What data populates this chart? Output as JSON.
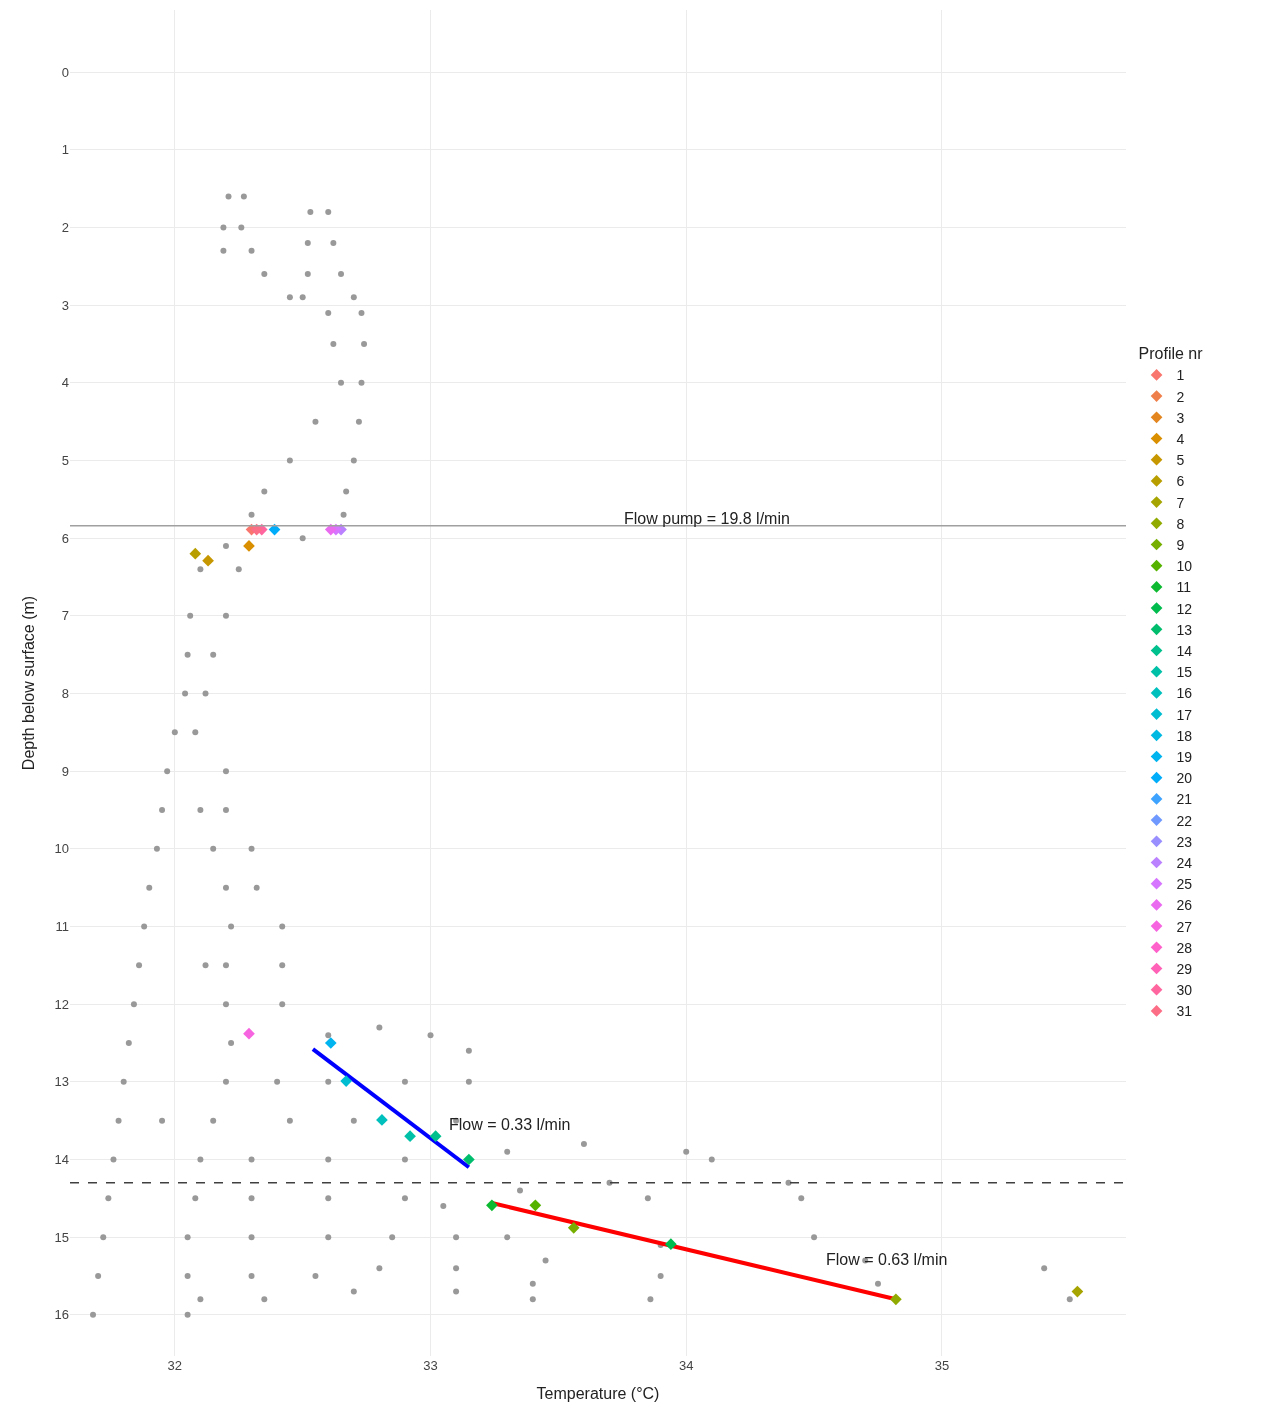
{
  "chart_data": {
    "type": "scatter",
    "xlabel": "Temperature (°C)",
    "ylabel": "Depth below surface (m)",
    "legend_title": "Profile nr",
    "xlim": [
      31.59,
      35.72
    ],
    "ylim": [
      16.53,
      -0.8
    ],
    "xticks": [
      32,
      33,
      34,
      35
    ],
    "yticks": [
      0,
      1,
      2,
      3,
      4,
      5,
      6,
      7,
      8,
      9,
      10,
      11,
      12,
      13,
      14,
      15,
      16
    ],
    "grid": true,
    "legend": "right",
    "ref_lines": [
      {
        "axis": "y",
        "value": 5.84,
        "color": "#a0a0a0",
        "line_style": "solid"
      },
      {
        "axis": "y",
        "value": 14.3,
        "color": "#404040",
        "line_style": "dashed"
      }
    ],
    "annotations": [
      "Flow pump = 19.8 l/min",
      "Flow = 0.33 l/min",
      "Flow = 0.63 l/min"
    ],
    "series": [
      {
        "type": "scatter",
        "color": "#999999",
        "marker": "circle",
        "x": [
          32.21,
          32.27,
          32.19,
          32.26,
          32.19,
          32.3,
          32.35,
          32.45,
          32.53,
          32.6,
          32.52,
          32.62,
          32.52,
          32.65,
          32.5,
          32.7,
          32.6,
          32.73,
          32.62,
          32.74,
          32.65,
          32.73,
          32.55,
          32.72,
          32.45,
          32.7,
          32.35,
          32.67,
          32.3,
          32.66,
          32.5,
          32.2,
          32.1,
          32.25,
          32.06,
          32.2,
          32.05,
          32.15,
          32.04,
          32.12,
          32.0,
          32.08,
          31.97,
          32.2,
          31.95,
          32.1,
          32.2,
          31.93,
          32.15,
          32.3,
          31.9,
          32.2,
          32.32,
          31.88,
          32.22,
          32.42,
          31.86,
          32.12,
          32.2,
          32.42,
          31.84,
          32.2,
          32.42,
          31.82,
          32.22,
          32.6,
          32.8,
          33.0,
          33.15,
          31.8,
          32.2,
          32.4,
          32.6,
          32.9,
          33.15,
          31.78,
          31.95,
          32.15,
          32.45,
          32.7,
          33.1,
          31.76,
          32.1,
          32.3,
          32.6,
          32.9,
          33.3,
          33.6,
          34.0,
          31.74,
          32.08,
          32.3,
          32.6,
          32.9,
          33.05,
          33.35,
          33.7,
          33.85,
          34.1,
          34.4,
          34.45,
          31.72,
          32.05,
          32.3,
          32.6,
          32.85,
          33.1,
          33.3,
          33.45,
          33.9,
          34.5,
          31.7,
          32.05,
          32.3,
          32.55,
          32.8,
          33.1,
          33.4,
          33.9,
          34.7,
          34.75,
          31.68,
          32.05,
          32.1,
          32.35,
          32.7,
          33.1,
          33.4,
          33.86,
          35.4,
          35.5
        ],
        "values": [
          1.6,
          1.6,
          2.0,
          2.0,
          2.3,
          2.3,
          2.6,
          2.9,
          1.8,
          1.8,
          2.2,
          2.2,
          2.6,
          2.6,
          2.9,
          2.9,
          3.1,
          3.1,
          3.5,
          3.5,
          4.0,
          4.0,
          4.5,
          4.5,
          5.0,
          5.0,
          5.4,
          5.4,
          5.7,
          5.7,
          6.0,
          6.1,
          6.4,
          6.4,
          7.0,
          7.0,
          7.5,
          7.5,
          8.0,
          8.0,
          8.5,
          8.5,
          9.0,
          9.0,
          9.5,
          9.5,
          9.5,
          10.0,
          10.0,
          10.0,
          10.5,
          10.5,
          10.5,
          11.0,
          11.0,
          11.0,
          11.5,
          11.5,
          11.5,
          11.5,
          12.0,
          12.0,
          12.0,
          12.5,
          12.5,
          12.4,
          12.3,
          12.4,
          12.6,
          13.0,
          13.0,
          13.0,
          13.0,
          13.0,
          13.0,
          13.5,
          13.5,
          13.5,
          13.5,
          13.5,
          13.5,
          14.0,
          14.0,
          14.0,
          14.0,
          14.0,
          13.9,
          13.8,
          13.9,
          14.5,
          14.5,
          14.5,
          14.5,
          14.5,
          14.6,
          14.4,
          14.3,
          14.5,
          14.0,
          14.3,
          14.5,
          15.0,
          15.0,
          15.0,
          15.0,
          15.0,
          15.0,
          15.0,
          15.3,
          15.1,
          15.0,
          15.5,
          15.5,
          15.5,
          15.5,
          15.4,
          15.4,
          15.6,
          15.5,
          15.3,
          15.6,
          16.0,
          16.0,
          15.8,
          15.8,
          15.7,
          15.7,
          15.8,
          15.8,
          15.4,
          15.8
        ]
      },
      {
        "type": "line",
        "color": "#0000ff",
        "marker": "none",
        "x": [
          32.54,
          33.15
        ],
        "values": [
          12.58,
          14.1
        ]
      },
      {
        "type": "line",
        "color": "#ff0000",
        "marker": "none",
        "x": [
          33.24,
          34.82
        ],
        "values": [
          14.56,
          15.8
        ]
      },
      {
        "name": "1",
        "color": "#F8766D",
        "marker": "diamond",
        "x": [
          32.3
        ],
        "values": [
          5.89
        ]
      },
      {
        "name": "2",
        "color": "#EF7F4A",
        "marker": "diamond",
        "x": [
          null
        ],
        "values": [
          null
        ]
      },
      {
        "name": "3",
        "color": "#E3861F",
        "marker": "diamond",
        "x": [
          null
        ],
        "values": [
          null
        ]
      },
      {
        "name": "4",
        "color": "#D98F00",
        "marker": "diamond",
        "x": [
          32.29
        ],
        "values": [
          6.1
        ]
      },
      {
        "name": "5",
        "color": "#C79700",
        "marker": "diamond",
        "x": [
          32.13
        ],
        "values": [
          6.29
        ]
      },
      {
        "name": "6",
        "color": "#B99E00",
        "marker": "diamond",
        "x": [
          32.08
        ],
        "values": [
          6.2
        ]
      },
      {
        "name": "7",
        "color": "#A6A400",
        "marker": "diamond",
        "x": [
          35.53
        ],
        "values": [
          15.7
        ]
      },
      {
        "name": "8",
        "color": "#90AA00",
        "marker": "diamond",
        "x": [
          34.82
        ],
        "values": [
          15.8
        ]
      },
      {
        "name": "9",
        "color": "#76AF00",
        "marker": "diamond",
        "x": [
          33.56
        ],
        "values": [
          14.88
        ]
      },
      {
        "name": "10",
        "color": "#55B300",
        "marker": "diamond",
        "x": [
          33.41
        ],
        "values": [
          14.59
        ]
      },
      {
        "name": "11",
        "color": "#0CB931",
        "marker": "diamond",
        "x": [
          33.24
        ],
        "values": [
          14.59
        ]
      },
      {
        "name": "12",
        "color": "#00BB4E",
        "marker": "diamond",
        "x": [
          33.94
        ],
        "values": [
          15.09
        ]
      },
      {
        "name": "13",
        "color": "#00BD6E",
        "marker": "diamond",
        "x": [
          33.15
        ],
        "values": [
          14.0
        ]
      },
      {
        "name": "14",
        "color": "#00C08D",
        "marker": "diamond",
        "x": [
          33.02
        ],
        "values": [
          13.7
        ]
      },
      {
        "name": "15",
        "color": "#00C0A8",
        "marker": "diamond",
        "x": [
          32.92
        ],
        "values": [
          13.7
        ]
      },
      {
        "name": "16",
        "color": "#00C0BE",
        "marker": "diamond",
        "x": [
          32.81
        ],
        "values": [
          13.49
        ]
      },
      {
        "name": "17",
        "color": "#00BDD1",
        "marker": "diamond",
        "x": [
          32.67
        ],
        "values": [
          12.99
        ]
      },
      {
        "name": "18",
        "color": "#00B9E2",
        "marker": "diamond",
        "x": [
          null
        ],
        "values": [
          null
        ]
      },
      {
        "name": "19",
        "color": "#00B4EF",
        "marker": "diamond",
        "x": [
          32.61
        ],
        "values": [
          12.5
        ]
      },
      {
        "name": "20",
        "color": "#00ADFA",
        "marker": "diamond",
        "x": [
          32.39
        ],
        "values": [
          5.89
        ]
      },
      {
        "name": "21",
        "color": "#3DA3FF",
        "marker": "diamond",
        "x": [
          null
        ],
        "values": [
          null
        ]
      },
      {
        "name": "22",
        "color": "#6F99FF",
        "marker": "diamond",
        "x": [
          null
        ],
        "values": [
          null
        ]
      },
      {
        "name": "23",
        "color": "#998FFF",
        "marker": "diamond",
        "x": [
          null
        ],
        "values": [
          null
        ]
      },
      {
        "name": "24",
        "color": "#BB82FF",
        "marker": "diamond",
        "x": [
          32.65
        ],
        "values": [
          5.89
        ]
      },
      {
        "name": "25",
        "color": "#D675FF",
        "marker": "diamond",
        "x": [
          32.63
        ],
        "values": [
          5.89
        ]
      },
      {
        "name": "26",
        "color": "#EA6AF0",
        "marker": "diamond",
        "x": [
          32.61
        ],
        "values": [
          5.89
        ]
      },
      {
        "name": "27",
        "color": "#F764E0",
        "marker": "diamond",
        "x": [
          32.29
        ],
        "values": [
          12.38
        ]
      },
      {
        "name": "28",
        "color": "#FF61CB",
        "marker": "diamond",
        "x": [
          null
        ],
        "values": [
          null
        ]
      },
      {
        "name": "29",
        "color": "#FF62B6",
        "marker": "diamond",
        "x": [
          null
        ],
        "values": [
          null
        ]
      },
      {
        "name": "30",
        "color": "#FF669F",
        "marker": "diamond",
        "x": [
          32.34
        ],
        "values": [
          5.89
        ]
      },
      {
        "name": "31",
        "color": "#FC6D86",
        "marker": "diamond",
        "x": [
          32.32
        ],
        "values": [
          5.89
        ]
      }
    ]
  }
}
